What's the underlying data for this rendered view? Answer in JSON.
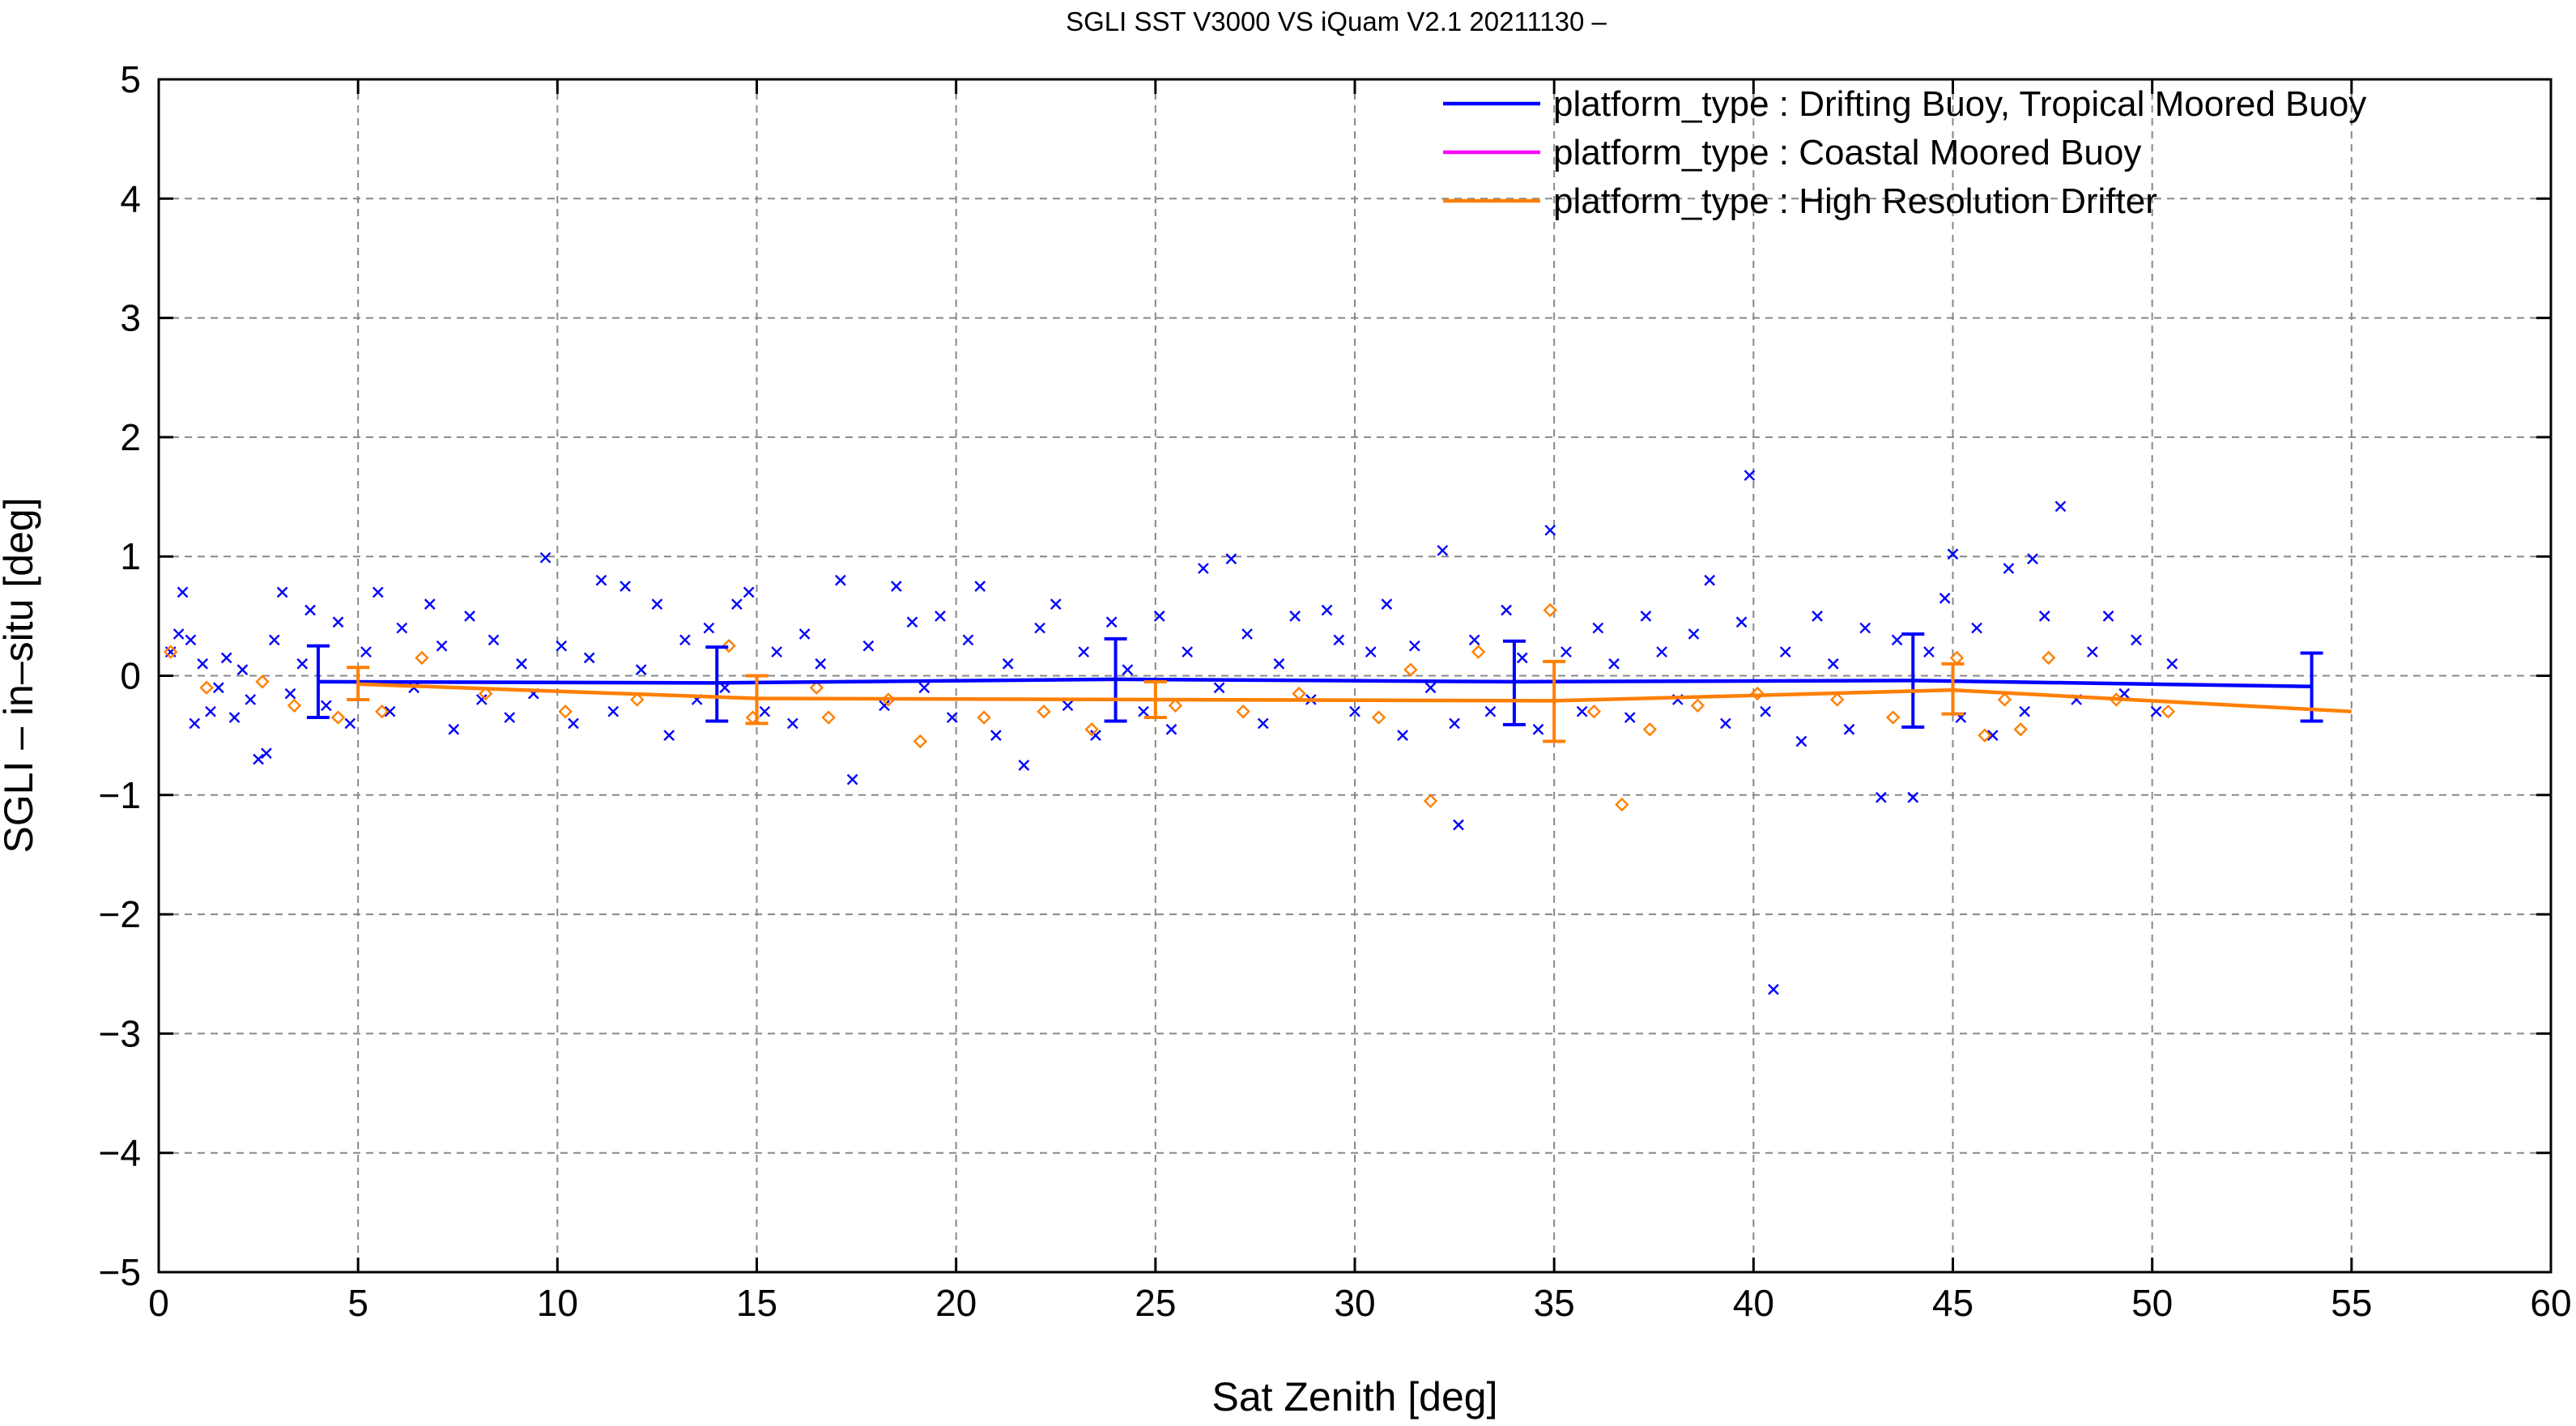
{
  "chart_data": {
    "type": "scatter",
    "title": "SGLI SST V3000 VS iQuam V2.1 20211130 –",
    "xlabel": "Sat Zenith [deg]",
    "ylabel": "SGLI – in–situ [deg]",
    "xlim": [
      0,
      60
    ],
    "ylim": [
      -5,
      5
    ],
    "xticks": [
      0,
      5,
      10,
      15,
      20,
      25,
      30,
      35,
      40,
      45,
      50,
      55,
      60
    ],
    "yticks": [
      -5,
      -4,
      -3,
      -2,
      -1,
      0,
      1,
      2,
      3,
      4,
      5
    ],
    "ytick_labels": [
      "−5",
      "−4",
      "−3",
      "−2",
      "−1",
      "0",
      "1",
      "2",
      "3",
      "4",
      "5"
    ],
    "grid": true,
    "legend_position": "top-right",
    "series": [
      {
        "name": "platform_type : Drifting Buoy, Tropical Moored Buoy",
        "color": "#0000ff",
        "marker": "x",
        "mean_line": {
          "x": [
            4,
            14,
            24,
            34,
            44,
            54
          ],
          "y": [
            -0.05,
            -0.06,
            -0.03,
            -0.05,
            -0.04,
            -0.09
          ]
        },
        "error_bars": [
          {
            "x": 4,
            "low": -0.35,
            "high": 0.25
          },
          {
            "x": 14,
            "low": -0.38,
            "high": 0.24
          },
          {
            "x": 24,
            "low": -0.38,
            "high": 0.31
          },
          {
            "x": 34,
            "low": -0.41,
            "high": 0.29
          },
          {
            "x": 44,
            "low": -0.43,
            "high": 0.35
          },
          {
            "x": 54,
            "low": -0.38,
            "high": 0.19
          }
        ],
        "points": [
          [
            0.3,
            0.2
          ],
          [
            0.5,
            0.35
          ],
          [
            0.6,
            0.7
          ],
          [
            0.8,
            0.3
          ],
          [
            0.9,
            -0.4
          ],
          [
            1.1,
            0.1
          ],
          [
            1.3,
            -0.3
          ],
          [
            1.5,
            -0.1
          ],
          [
            1.7,
            0.15
          ],
          [
            1.9,
            -0.35
          ],
          [
            2.1,
            0.05
          ],
          [
            2.3,
            -0.2
          ],
          [
            2.5,
            -0.7
          ],
          [
            2.7,
            -0.65
          ],
          [
            2.9,
            0.3
          ],
          [
            3.1,
            0.7
          ],
          [
            3.3,
            -0.15
          ],
          [
            3.6,
            0.1
          ],
          [
            3.8,
            0.55
          ],
          [
            4.2,
            -0.25
          ],
          [
            4.5,
            0.45
          ],
          [
            4.8,
            -0.4
          ],
          [
            5.2,
            0.2
          ],
          [
            5.5,
            0.7
          ],
          [
            5.8,
            -0.3
          ],
          [
            6.1,
            0.4
          ],
          [
            6.4,
            -0.1
          ],
          [
            6.8,
            0.6
          ],
          [
            7.1,
            0.25
          ],
          [
            7.4,
            -0.45
          ],
          [
            7.8,
            0.5
          ],
          [
            8.1,
            -0.2
          ],
          [
            8.4,
            0.3
          ],
          [
            8.8,
            -0.35
          ],
          [
            9.1,
            0.1
          ],
          [
            9.4,
            -0.15
          ],
          [
            9.7,
            0.99
          ],
          [
            10.1,
            0.25
          ],
          [
            10.4,
            -0.4
          ],
          [
            10.8,
            0.15
          ],
          [
            11.1,
            0.8
          ],
          [
            11.4,
            -0.3
          ],
          [
            11.7,
            0.75
          ],
          [
            12.1,
            0.05
          ],
          [
            12.5,
            0.6
          ],
          [
            12.8,
            -0.5
          ],
          [
            13.2,
            0.3
          ],
          [
            13.5,
            -0.2
          ],
          [
            13.8,
            0.4
          ],
          [
            14.2,
            -0.1
          ],
          [
            14.5,
            0.6
          ],
          [
            14.8,
            0.7
          ],
          [
            15.2,
            -0.3
          ],
          [
            15.5,
            0.2
          ],
          [
            15.9,
            -0.4
          ],
          [
            16.2,
            0.35
          ],
          [
            16.6,
            0.1
          ],
          [
            17.1,
            0.8
          ],
          [
            17.4,
            -0.87
          ],
          [
            17.8,
            0.25
          ],
          [
            18.2,
            -0.25
          ],
          [
            18.5,
            0.75
          ],
          [
            18.9,
            0.45
          ],
          [
            19.2,
            -0.1
          ],
          [
            19.6,
            0.5
          ],
          [
            19.9,
            -0.35
          ],
          [
            20.3,
            0.3
          ],
          [
            20.6,
            0.75
          ],
          [
            21.0,
            -0.5
          ],
          [
            21.3,
            0.1
          ],
          [
            21.7,
            -0.75
          ],
          [
            22.1,
            0.4
          ],
          [
            22.5,
            0.6
          ],
          [
            22.8,
            -0.25
          ],
          [
            23.2,
            0.2
          ],
          [
            23.5,
            -0.5
          ],
          [
            23.9,
            0.45
          ],
          [
            24.3,
            0.05
          ],
          [
            24.7,
            -0.3
          ],
          [
            25.1,
            0.5
          ],
          [
            25.4,
            -0.45
          ],
          [
            25.8,
            0.2
          ],
          [
            26.2,
            0.9
          ],
          [
            26.6,
            -0.1
          ],
          [
            26.9,
            0.98
          ],
          [
            27.3,
            0.35
          ],
          [
            27.7,
            -0.4
          ],
          [
            28.1,
            0.1
          ],
          [
            28.5,
            0.5
          ],
          [
            28.9,
            -0.2
          ],
          [
            29.3,
            0.55
          ],
          [
            29.6,
            0.3
          ],
          [
            30.0,
            -0.3
          ],
          [
            30.4,
            0.2
          ],
          [
            30.8,
            0.6
          ],
          [
            31.2,
            -0.5
          ],
          [
            31.5,
            0.25
          ],
          [
            31.9,
            -0.1
          ],
          [
            32.2,
            1.05
          ],
          [
            32.5,
            -0.4
          ],
          [
            32.6,
            -1.25
          ],
          [
            33.0,
            0.3
          ],
          [
            33.4,
            -0.3
          ],
          [
            33.8,
            0.55
          ],
          [
            34.2,
            0.15
          ],
          [
            34.6,
            -0.45
          ],
          [
            34.9,
            1.22
          ],
          [
            35.3,
            0.2
          ],
          [
            35.7,
            -0.3
          ],
          [
            36.1,
            0.4
          ],
          [
            36.5,
            0.1
          ],
          [
            36.9,
            -0.35
          ],
          [
            37.3,
            0.5
          ],
          [
            37.7,
            0.2
          ],
          [
            38.1,
            -0.2
          ],
          [
            38.5,
            0.35
          ],
          [
            38.9,
            0.8
          ],
          [
            39.3,
            -0.4
          ],
          [
            39.7,
            0.45
          ],
          [
            39.9,
            1.68
          ],
          [
            40.3,
            -0.3
          ],
          [
            40.5,
            -2.63
          ],
          [
            40.8,
            0.2
          ],
          [
            41.2,
            -0.55
          ],
          [
            41.6,
            0.5
          ],
          [
            42.0,
            0.1
          ],
          [
            42.4,
            -0.45
          ],
          [
            42.8,
            0.4
          ],
          [
            43.2,
            -1.02
          ],
          [
            43.6,
            0.3
          ],
          [
            44.0,
            -1.02
          ],
          [
            44.4,
            0.2
          ],
          [
            44.8,
            0.65
          ],
          [
            45.0,
            1.02
          ],
          [
            45.2,
            -0.35
          ],
          [
            45.6,
            0.4
          ],
          [
            46.0,
            -0.5
          ],
          [
            46.4,
            0.9
          ],
          [
            46.8,
            -0.3
          ],
          [
            47.0,
            0.98
          ],
          [
            47.3,
            0.5
          ],
          [
            47.7,
            1.42
          ],
          [
            48.1,
            -0.2
          ],
          [
            48.5,
            0.2
          ],
          [
            48.9,
            0.5
          ],
          [
            49.3,
            -0.15
          ],
          [
            49.6,
            0.3
          ],
          [
            50.1,
            -0.3
          ],
          [
            50.5,
            0.1
          ]
        ]
      },
      {
        "name": "platform_type : Coastal Moored Buoy",
        "color": "#ff00ff",
        "marker": "+",
        "points": []
      },
      {
        "name": "platform_type : High Resolution Drifter",
        "color": "#ff7f00",
        "marker": "diamond",
        "mean_line": {
          "x": [
            5,
            15,
            25,
            35,
            45,
            55
          ],
          "y": [
            -0.07,
            -0.19,
            -0.2,
            -0.21,
            -0.12,
            -0.3
          ]
        },
        "error_bars": [
          {
            "x": 5,
            "low": -0.2,
            "high": 0.07
          },
          {
            "x": 15,
            "low": -0.4,
            "high": 0.0
          },
          {
            "x": 25,
            "low": -0.35,
            "high": -0.05
          },
          {
            "x": 35,
            "low": -0.55,
            "high": 0.12
          },
          {
            "x": 45,
            "low": -0.32,
            "high": 0.1
          }
        ],
        "points": [
          [
            0.3,
            0.2
          ],
          [
            1.2,
            -0.1
          ],
          [
            2.6,
            -0.05
          ],
          [
            3.4,
            -0.25
          ],
          [
            4.5,
            -0.35
          ],
          [
            5.6,
            -0.3
          ],
          [
            6.6,
            0.15
          ],
          [
            8.2,
            -0.15
          ],
          [
            10.2,
            -0.3
          ],
          [
            12.0,
            -0.2
          ],
          [
            14.3,
            0.25
          ],
          [
            14.9,
            -0.35
          ],
          [
            16.5,
            -0.1
          ],
          [
            16.8,
            -0.35
          ],
          [
            18.3,
            -0.2
          ],
          [
            19.1,
            -0.55
          ],
          [
            20.7,
            -0.35
          ],
          [
            22.2,
            -0.3
          ],
          [
            23.4,
            -0.45
          ],
          [
            25.5,
            -0.25
          ],
          [
            27.2,
            -0.3
          ],
          [
            28.6,
            -0.15
          ],
          [
            30.6,
            -0.35
          ],
          [
            31.4,
            0.05
          ],
          [
            31.9,
            -1.05
          ],
          [
            33.1,
            0.2
          ],
          [
            34.9,
            0.55
          ],
          [
            36.0,
            -0.3
          ],
          [
            36.7,
            -1.08
          ],
          [
            37.4,
            -0.45
          ],
          [
            38.6,
            -0.25
          ],
          [
            40.1,
            -0.15
          ],
          [
            42.1,
            -0.2
          ],
          [
            43.5,
            -0.35
          ],
          [
            45.1,
            0.15
          ],
          [
            45.8,
            -0.5
          ],
          [
            46.3,
            -0.2
          ],
          [
            46.7,
            -0.45
          ],
          [
            47.4,
            0.15
          ],
          [
            49.1,
            -0.2
          ],
          [
            50.4,
            -0.3
          ]
        ]
      }
    ]
  }
}
